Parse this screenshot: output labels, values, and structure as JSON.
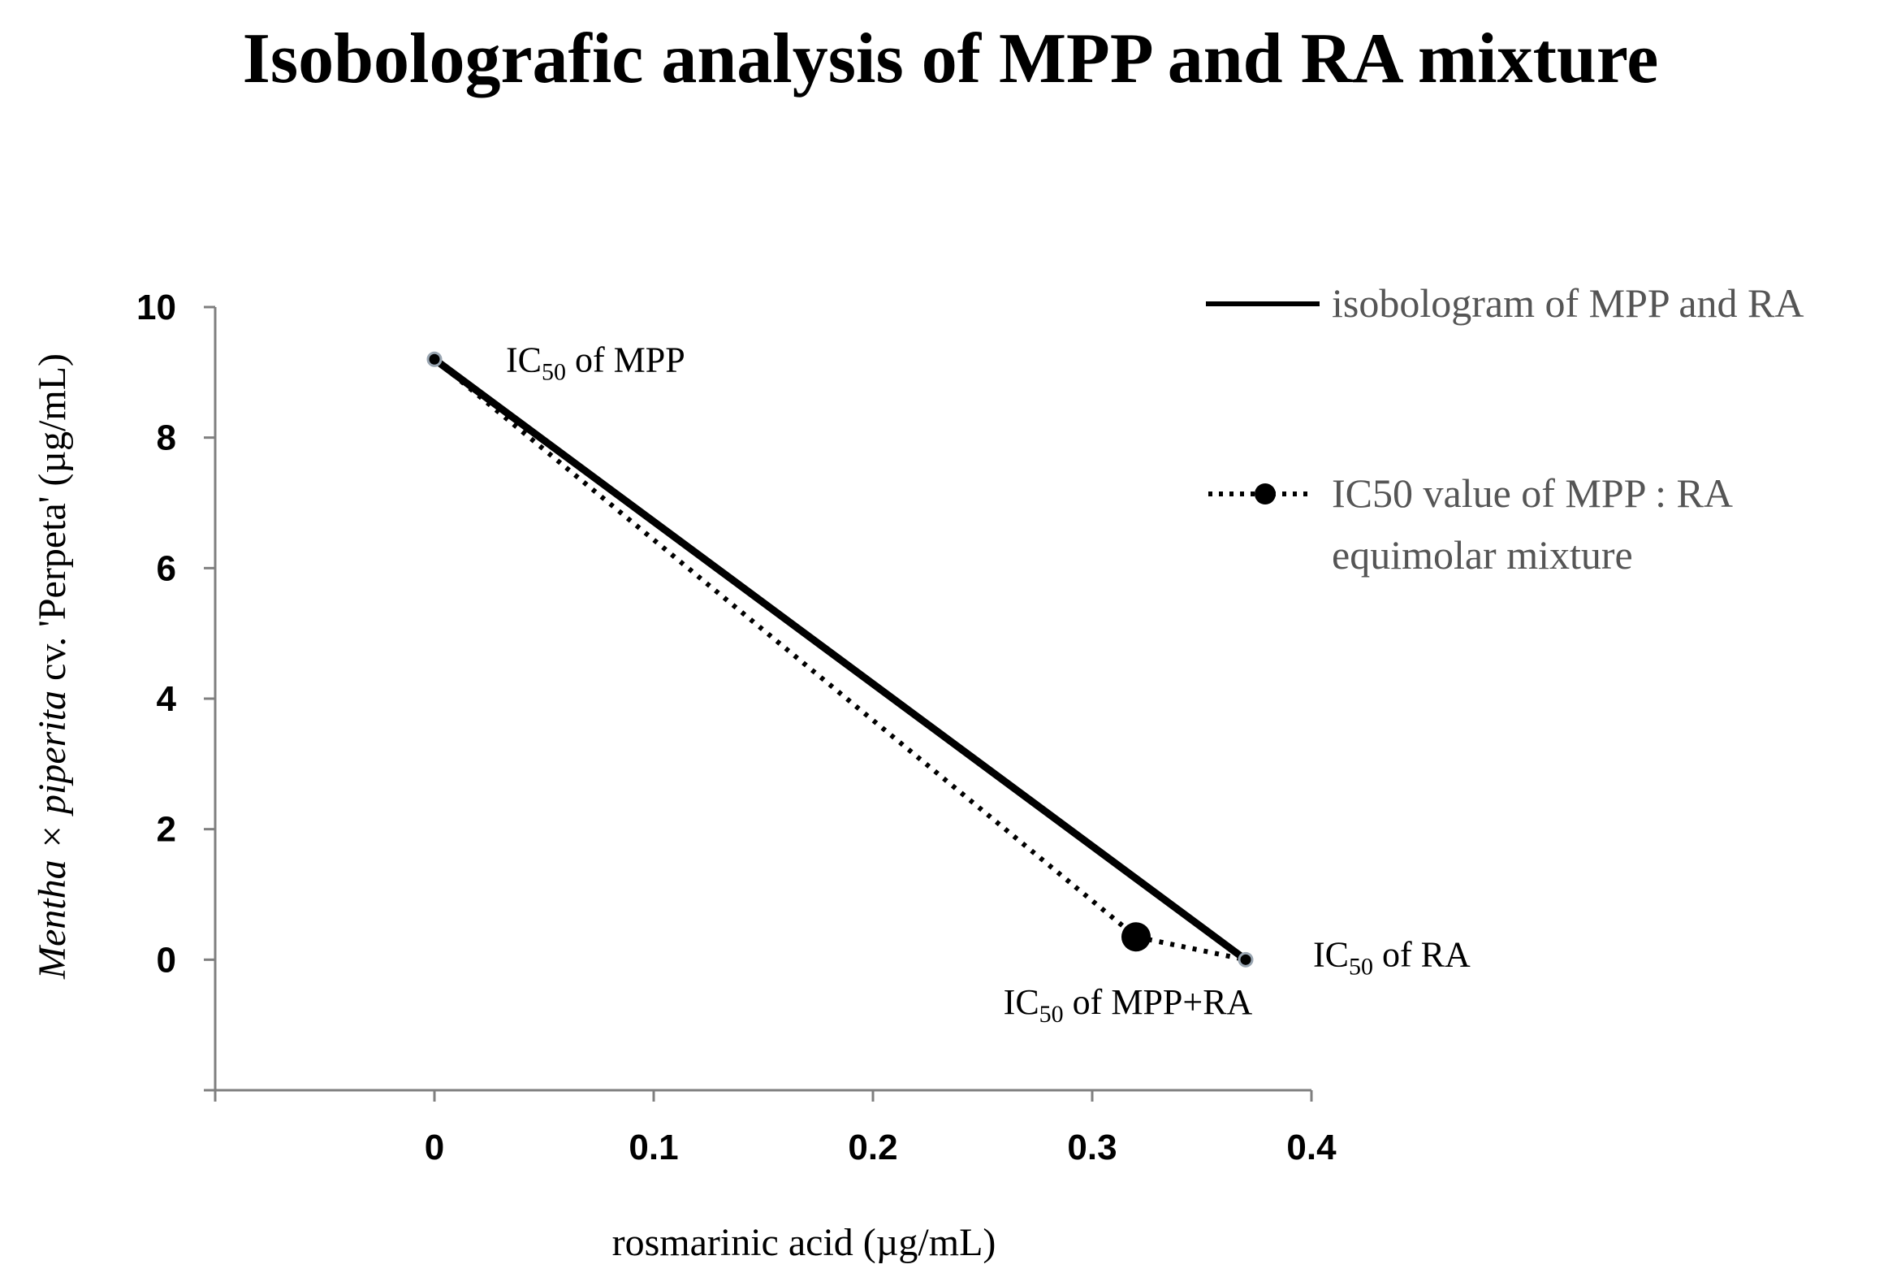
{
  "chart_data": {
    "type": "line",
    "title": "Isobolografic analysis of MPP and RA mixture",
    "xlabel": "rosmarinic acid (µg/mL)",
    "ylabel_italic": "Mentha × piperita",
    "ylabel_rest": " cv. 'Perpeta' (µg/mL)",
    "xlim": [
      -0.1,
      0.4
    ],
    "ylim": [
      -2,
      10
    ],
    "x_ticks": [
      {
        "value": 0,
        "label": "0"
      },
      {
        "value": 0.1,
        "label": "0.1"
      },
      {
        "value": 0.2,
        "label": "0.2"
      },
      {
        "value": 0.3,
        "label": "0.3"
      },
      {
        "value": 0.4,
        "label": "0.4"
      }
    ],
    "y_ticks": [
      {
        "value": 0,
        "label": "0"
      },
      {
        "value": 2,
        "label": "2"
      },
      {
        "value": 4,
        "label": "4"
      },
      {
        "value": 6,
        "label": "6"
      },
      {
        "value": 8,
        "label": "8"
      },
      {
        "value": 10,
        "label": "10"
      }
    ],
    "series": [
      {
        "name": "isobologram of MPP and RA",
        "style": "solid",
        "points": [
          {
            "x": 0,
            "y": 9.2
          },
          {
            "x": 0.37,
            "y": 0
          }
        ]
      },
      {
        "name": "IC50 value of MPP : RA equimolar mixture",
        "name_line1": "IC50 value of MPP : RA",
        "name_line2": "equimolar mixture",
        "style": "dotted",
        "points": [
          {
            "x": 0,
            "y": 9.2
          },
          {
            "x": 0.32,
            "y": 0.35
          },
          {
            "x": 0.37,
            "y": 0
          }
        ]
      }
    ],
    "annotations": [
      {
        "prefix": "IC",
        "sub": "50",
        "suffix": " of MPP",
        "x": 0,
        "y": 9.2
      },
      {
        "prefix": "IC",
        "sub": "50",
        "suffix": " of RA",
        "x": 0.37,
        "y": 0
      },
      {
        "prefix": "IC",
        "sub": "50",
        "suffix": " of MPP+RA",
        "x": 0.32,
        "y": 0.35
      }
    ],
    "colors": {
      "line": "#000000",
      "legend_text": "#555555",
      "axis": "#7f7f7f"
    }
  }
}
